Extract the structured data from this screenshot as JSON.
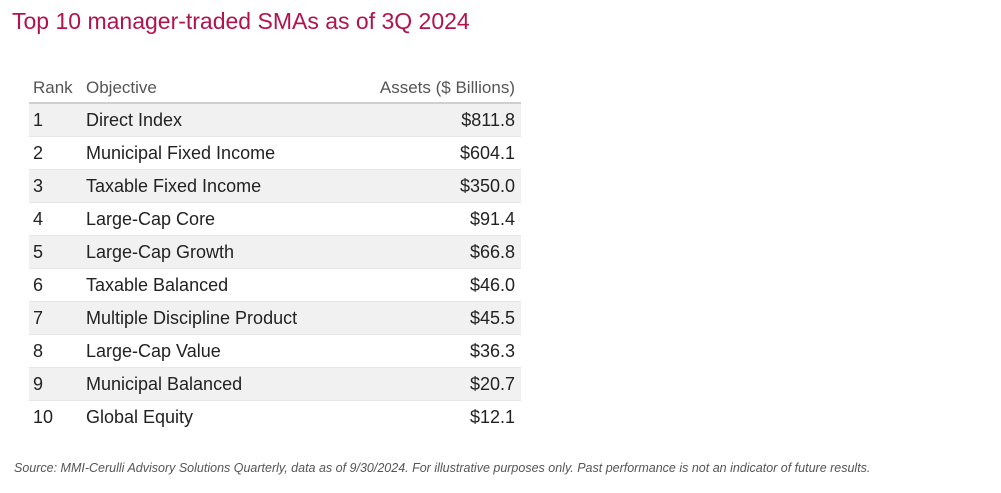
{
  "title": "Top 10 manager-traded SMAs as of 3Q 2024",
  "colors": {
    "title": "#b3124f",
    "row_shade": "#f1f1f1",
    "text": "#222222"
  },
  "chart_data": {
    "type": "table",
    "title": "Top 10 manager-traded SMAs as of 3Q 2024",
    "columns": [
      "Rank",
      "Objective",
      "Assets ($ Billions)"
    ],
    "rows": [
      {
        "rank": "1",
        "objective": "Direct Index",
        "assets": "$811.8"
      },
      {
        "rank": "2",
        "objective": "Municipal Fixed Income",
        "assets": "$604.1"
      },
      {
        "rank": "3",
        "objective": "Taxable Fixed Income",
        "assets": "$350.0"
      },
      {
        "rank": "4",
        "objective": "Large-Cap Core",
        "assets": "$91.4"
      },
      {
        "rank": "5",
        "objective": "Large-Cap Growth",
        "assets": "$66.8"
      },
      {
        "rank": "6",
        "objective": "Taxable Balanced",
        "assets": "$46.0"
      },
      {
        "rank": "7",
        "objective": "Multiple Discipline Product",
        "assets": "$45.5"
      },
      {
        "rank": "8",
        "objective": "Large-Cap Value",
        "assets": "$36.3"
      },
      {
        "rank": "9",
        "objective": "Municipal Balanced",
        "assets": "$20.7"
      },
      {
        "rank": "10",
        "objective": "Global Equity",
        "assets": "$12.1"
      }
    ]
  },
  "footnote": "Source: MMI-Cerulli Advisory Solutions Quarterly, data as of 9/30/2024. For illustrative purposes only. Past performance is not an indicator of future results."
}
